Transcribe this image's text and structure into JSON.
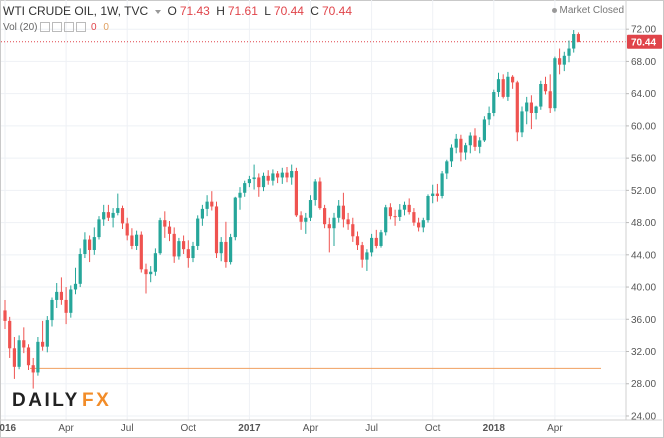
{
  "header": {
    "symbol": "WTI CRUDE OIL, 1W, TVC",
    "o_label": "O",
    "o_value": "71.43",
    "h_label": "H",
    "h_value": "71.61",
    "l_label": "L",
    "l_value": "70.44",
    "c_label": "C",
    "c_value": "70.44",
    "vol_label": "Vol (20)",
    "vol_value_1": "0",
    "vol_value_2": "0",
    "status": "Market Closed"
  },
  "logo": "DAILYFX",
  "colors": {
    "up": "#26a69a",
    "down": "#ef5350",
    "last_price_line": "#e0444a",
    "horizontal_line": "#f0a060",
    "grid": "#eef1f5"
  },
  "chart_data": {
    "type": "candlestick",
    "title": "WTI CRUDE OIL, 1W, TVC",
    "interval": "1W",
    "x_ticks": [
      "2016",
      "Apr",
      "Jul",
      "Oct",
      "2017",
      "Apr",
      "Jul",
      "Oct",
      "2018",
      "Apr"
    ],
    "y_ticks": [
      "24.00",
      "28.00",
      "32.00",
      "36.00",
      "40.00",
      "44.00",
      "48.00",
      "52.00",
      "56.00",
      "60.00",
      "64.00",
      "68.00",
      "72.00"
    ],
    "ylim": [
      23.5,
      75.5
    ],
    "last_price": 70.44,
    "horizontal_line": 29.9,
    "grid": true,
    "ohlc": [
      [
        37.1,
        38.4,
        34.8,
        35.8
      ],
      [
        35.8,
        36.3,
        31.2,
        32.4
      ],
      [
        32.4,
        33.8,
        28.6,
        30.1
      ],
      [
        30.1,
        34.0,
        29.8,
        33.4
      ],
      [
        33.4,
        35.0,
        31.8,
        32.5
      ],
      [
        32.5,
        32.9,
        29.7,
        30.3
      ],
      [
        30.3,
        31.2,
        27.4,
        29.4
      ],
      [
        29.4,
        33.8,
        29.0,
        33.2
      ],
      [
        33.2,
        35.8,
        32.1,
        32.6
      ],
      [
        32.6,
        36.4,
        31.9,
        35.9
      ],
      [
        35.9,
        38.7,
        35.1,
        38.4
      ],
      [
        38.4,
        40.5,
        37.4,
        39.4
      ],
      [
        39.4,
        41.2,
        37.8,
        38.4
      ],
      [
        38.4,
        40.0,
        35.4,
        36.8
      ],
      [
        36.8,
        40.2,
        36.2,
        39.7
      ],
      [
        39.7,
        42.4,
        39.1,
        40.4
      ],
      [
        40.4,
        44.8,
        40.0,
        44.1
      ],
      [
        44.1,
        46.8,
        43.6,
        45.9
      ],
      [
        45.9,
        46.4,
        43.1,
        44.6
      ],
      [
        44.6,
        47.4,
        44.0,
        46.2
      ],
      [
        46.2,
        48.8,
        45.9,
        48.4
      ],
      [
        48.4,
        50.2,
        47.6,
        49.3
      ],
      [
        49.3,
        50.2,
        48.2,
        48.6
      ],
      [
        48.6,
        49.8,
        47.4,
        49.2
      ],
      [
        49.2,
        51.6,
        48.9,
        49.8
      ],
      [
        49.8,
        50.1,
        47.2,
        47.9
      ],
      [
        47.9,
        48.6,
        45.8,
        46.4
      ],
      [
        46.4,
        47.3,
        44.7,
        45.1
      ],
      [
        45.1,
        47.0,
        44.6,
        46.5
      ],
      [
        46.5,
        46.9,
        41.8,
        42.2
      ],
      [
        42.2,
        42.9,
        39.2,
        41.6
      ],
      [
        41.6,
        42.6,
        40.6,
        41.9
      ],
      [
        41.9,
        44.8,
        41.4,
        44.2
      ],
      [
        44.2,
        48.6,
        44.0,
        48.3
      ],
      [
        48.3,
        49.4,
        46.1,
        47.5
      ],
      [
        47.5,
        48.2,
        45.7,
        46.6
      ],
      [
        46.6,
        47.4,
        43.0,
        43.8
      ],
      [
        43.8,
        46.1,
        43.4,
        45.7
      ],
      [
        45.7,
        46.4,
        44.1,
        44.7
      ],
      [
        44.7,
        45.8,
        42.4,
        43.6
      ],
      [
        43.6,
        45.6,
        43.1,
        45.1
      ],
      [
        45.1,
        48.9,
        44.6,
        48.5
      ],
      [
        48.5,
        50.2,
        47.6,
        49.7
      ],
      [
        49.7,
        51.4,
        48.8,
        50.6
      ],
      [
        50.6,
        51.9,
        49.5,
        50.0
      ],
      [
        50.0,
        50.6,
        43.6,
        44.2
      ],
      [
        44.2,
        46.2,
        43.2,
        45.6
      ],
      [
        45.6,
        48.1,
        42.4,
        43.1
      ],
      [
        43.1,
        46.6,
        42.8,
        46.2
      ],
      [
        46.2,
        51.2,
        45.8,
        51.1
      ],
      [
        51.1,
        52.4,
        49.6,
        51.7
      ],
      [
        51.7,
        53.2,
        51.2,
        52.9
      ],
      [
        52.9,
        53.8,
        52.4,
        53.4
      ],
      [
        53.4,
        55.2,
        52.1,
        53.6
      ],
      [
        53.6,
        54.1,
        51.2,
        52.4
      ],
      [
        52.4,
        54.2,
        51.9,
        53.8
      ],
      [
        53.8,
        54.5,
        52.7,
        53.2
      ],
      [
        53.2,
        54.6,
        52.6,
        54.1
      ],
      [
        54.1,
        54.4,
        52.9,
        53.6
      ],
      [
        53.6,
        54.8,
        52.8,
        54.2
      ],
      [
        54.2,
        54.9,
        53.0,
        53.6
      ],
      [
        53.6,
        55.2,
        52.7,
        54.4
      ],
      [
        54.4,
        54.8,
        48.7,
        48.9
      ],
      [
        48.9,
        49.4,
        47.1,
        48.1
      ],
      [
        48.1,
        49.2,
        46.6,
        48.6
      ],
      [
        48.6,
        51.4,
        48.2,
        50.8
      ],
      [
        50.8,
        53.4,
        50.1,
        53.1
      ],
      [
        53.1,
        53.6,
        49.6,
        49.8
      ],
      [
        49.8,
        50.2,
        47.3,
        47.8
      ],
      [
        47.8,
        48.6,
        44.3,
        47.3
      ],
      [
        47.3,
        49.2,
        45.1,
        48.6
      ],
      [
        48.6,
        50.8,
        48.0,
        50.1
      ],
      [
        50.1,
        51.7,
        47.4,
        48.4
      ],
      [
        48.4,
        49.2,
        47.1,
        47.8
      ],
      [
        47.8,
        48.6,
        45.6,
        46.3
      ],
      [
        46.3,
        46.9,
        44.6,
        45.2
      ],
      [
        45.2,
        45.6,
        42.4,
        43.4
      ],
      [
        43.4,
        44.7,
        42.0,
        44.3
      ],
      [
        44.3,
        46.6,
        43.8,
        46.1
      ],
      [
        46.1,
        47.1,
        44.8,
        45.1
      ],
      [
        45.1,
        47.1,
        44.9,
        46.8
      ],
      [
        46.8,
        50.2,
        46.4,
        49.9
      ],
      [
        49.9,
        50.4,
        48.4,
        48.8
      ],
      [
        48.8,
        49.6,
        47.6,
        48.7
      ],
      [
        48.7,
        50.3,
        48.2,
        49.6
      ],
      [
        49.6,
        50.6,
        48.9,
        50.2
      ],
      [
        50.2,
        51.0,
        49.0,
        49.3
      ],
      [
        49.3,
        49.8,
        47.6,
        48.0
      ],
      [
        48.0,
        48.6,
        46.9,
        47.4
      ],
      [
        47.4,
        48.6,
        46.8,
        48.3
      ],
      [
        48.3,
        51.5,
        48.0,
        51.3
      ],
      [
        51.3,
        52.7,
        50.4,
        51.6
      ],
      [
        51.6,
        52.8,
        50.6,
        51.3
      ],
      [
        51.3,
        54.4,
        51.0,
        54.1
      ],
      [
        54.1,
        55.8,
        53.4,
        55.6
      ],
      [
        55.6,
        57.7,
        54.9,
        57.3
      ],
      [
        57.3,
        59.0,
        56.6,
        58.4
      ],
      [
        58.4,
        58.9,
        55.6,
        56.7
      ],
      [
        56.7,
        57.9,
        55.8,
        57.6
      ],
      [
        57.6,
        59.2,
        56.6,
        58.8
      ],
      [
        58.8,
        59.7,
        56.9,
        57.4
      ],
      [
        57.4,
        58.6,
        56.6,
        58.2
      ],
      [
        58.2,
        61.2,
        58.0,
        60.8
      ],
      [
        60.8,
        62.4,
        60.1,
        61.6
      ],
      [
        61.6,
        64.5,
        61.2,
        64.2
      ],
      [
        64.2,
        66.6,
        63.6,
        65.8
      ],
      [
        65.8,
        66.4,
        63.4,
        63.6
      ],
      [
        63.6,
        66.7,
        63.1,
        66.1
      ],
      [
        66.1,
        66.3,
        64.6,
        65.4
      ],
      [
        65.4,
        65.6,
        58.1,
        59.2
      ],
      [
        59.2,
        62.4,
        58.6,
        61.8
      ],
      [
        61.8,
        63.6,
        60.2,
        62.9
      ],
      [
        62.9,
        63.8,
        59.6,
        61.6
      ],
      [
        61.6,
        62.5,
        60.8,
        62.4
      ],
      [
        62.4,
        65.6,
        62.0,
        65.2
      ],
      [
        65.2,
        66.1,
        63.9,
        64.3
      ],
      [
        64.3,
        66.4,
        61.6,
        62.2
      ],
      [
        62.2,
        68.6,
        61.8,
        68.4
      ],
      [
        68.4,
        69.6,
        66.4,
        67.6
      ],
      [
        67.6,
        69.2,
        66.8,
        68.7
      ],
      [
        68.7,
        70.6,
        67.9,
        69.6
      ],
      [
        69.6,
        71.9,
        69.1,
        71.4
      ],
      [
        71.4,
        71.6,
        70.4,
        70.4
      ]
    ]
  }
}
